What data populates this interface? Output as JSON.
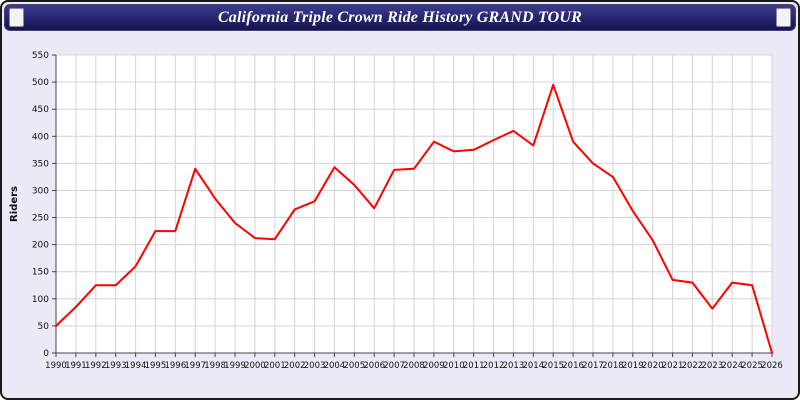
{
  "header": {
    "title": "California Triple Crown Ride History GRAND TOUR"
  },
  "colors": {
    "page_background": "#ebebf7",
    "header_background": "#1b1b66",
    "plot_background": "#ffffff",
    "grid": "#d4d4d4",
    "axis": "#444444",
    "line": "#ff0000",
    "text": "#111111"
  },
  "chart_data": {
    "type": "line",
    "title": "California Triple Crown Ride History GRAND TOUR",
    "xlabel": "",
    "ylabel": "Riders",
    "ylim": [
      0,
      550
    ],
    "yticks": [
      0,
      50,
      100,
      150,
      200,
      250,
      300,
      350,
      400,
      450,
      500,
      550
    ],
    "grid": true,
    "legend": "none",
    "line_color": "#ff0000",
    "categories": [
      1990,
      1991,
      1992,
      1993,
      1994,
      1995,
      1996,
      1997,
      1998,
      1999,
      2000,
      2001,
      2002,
      2003,
      2004,
      2005,
      2006,
      2007,
      2008,
      2009,
      2010,
      2011,
      2012,
      2013,
      2014,
      2015,
      2016,
      2017,
      2018,
      2019,
      2020,
      2021,
      2022,
      2023,
      2024,
      2025,
      2026
    ],
    "series": [
      {
        "name": "Riders",
        "values": [
          50,
          85,
          125,
          125,
          160,
          225,
          225,
          340,
          285,
          240,
          212,
          210,
          265,
          280,
          343,
          310,
          267,
          338,
          340,
          390,
          372,
          375,
          393,
          410,
          383,
          495,
          390,
          350,
          325,
          262,
          208,
          135,
          130,
          82,
          130,
          125,
          0
        ]
      }
    ]
  }
}
